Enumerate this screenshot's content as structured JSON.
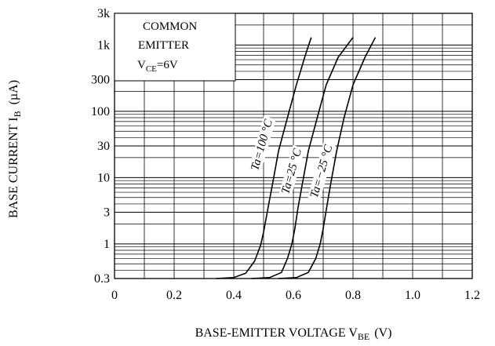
{
  "chart_data": {
    "type": "line",
    "title": "",
    "xlabel_main": "BASE-EMITTER VOLTAGE V",
    "xlabel_sub": "BE",
    "xlabel_unit": "(V)",
    "ylabel_main": "BASE CURRENT I",
    "ylabel_sub": "B",
    "ylabel_unit": "(µA)",
    "xlim": [
      0,
      1.2
    ],
    "ylim": [
      0.3,
      3000
    ],
    "yscale": "log",
    "grid": true,
    "x_ticks": [
      {
        "value": 0,
        "label": "0"
      },
      {
        "value": 0.2,
        "label": "0.2"
      },
      {
        "value": 0.4,
        "label": "0.4"
      },
      {
        "value": 0.6,
        "label": "0.6"
      },
      {
        "value": 0.8,
        "label": "0.8"
      },
      {
        "value": 1.0,
        "label": "1.0"
      },
      {
        "value": 1.2,
        "label": "1.2"
      }
    ],
    "y_ticks": [
      {
        "value": 3000,
        "label": "3k"
      },
      {
        "value": 1000,
        "label": "1k"
      },
      {
        "value": 300,
        "label": "300"
      },
      {
        "value": 100,
        "label": "100"
      },
      {
        "value": 30,
        "label": "30"
      },
      {
        "value": 10,
        "label": "10"
      },
      {
        "value": 3,
        "label": "3"
      },
      {
        "value": 1,
        "label": "1"
      },
      {
        "value": 0.3,
        "label": "0.3"
      }
    ],
    "legend": {
      "position": "top-left",
      "line1": "COMMON",
      "line2": "EMITTER",
      "line3_main": "V",
      "line3_sub": "CE",
      "line3_value": "=6V"
    },
    "series": [
      {
        "name": "Ta=100 °C",
        "x": [
          0.34,
          0.4,
          0.44,
          0.47,
          0.49,
          0.5,
          0.515,
          0.53,
          0.55,
          0.58,
          0.61,
          0.64,
          0.66
        ],
        "y": [
          0.3,
          0.31,
          0.36,
          0.55,
          0.95,
          1.5,
          3.5,
          8,
          25,
          80,
          250,
          700,
          1300
        ]
      },
      {
        "name": "Ta=25 °C",
        "x": [
          0.46,
          0.52,
          0.56,
          0.58,
          0.595,
          0.605,
          0.615,
          0.63,
          0.65,
          0.68,
          0.71,
          0.75,
          0.8
        ],
        "y": [
          0.3,
          0.31,
          0.37,
          0.6,
          1.0,
          1.7,
          3.4,
          8,
          25,
          80,
          250,
          650,
          1300
        ]
      },
      {
        "name": "Ta=−25 °C",
        "x": [
          0.55,
          0.61,
          0.65,
          0.675,
          0.69,
          0.7,
          0.71,
          0.725,
          0.745,
          0.77,
          0.8,
          0.84,
          0.875
        ],
        "y": [
          0.3,
          0.31,
          0.37,
          0.6,
          1.0,
          1.7,
          3.2,
          8,
          25,
          80,
          250,
          650,
          1300
        ]
      }
    ]
  }
}
